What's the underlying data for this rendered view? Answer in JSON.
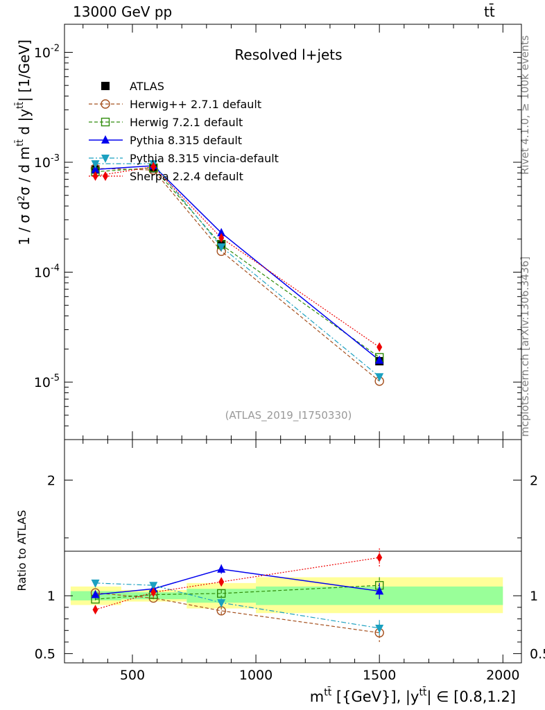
{
  "header": {
    "left": "13000 GeV pp",
    "right": "t t̄"
  },
  "side_labels": {
    "rivet": "Rivet 4.1.0, ≥ 100k events",
    "mcplots": "mcplots.cern.ch [arXiv:1306.3436]"
  },
  "colors": {
    "atlas": "#000000",
    "herwigpp": "#a5501e",
    "herwig7": "#2f8c0a",
    "pythia": "#0000ee",
    "vincia": "#1ba0c0",
    "sherpa": "#ee0000",
    "band_inner": "#99ff99",
    "band_outer": "#ffff99"
  },
  "chart_data": [
    {
      "type": "line",
      "title": "Resolved l+jets",
      "analysis_id": "(ATLAS_2019_I1750330)",
      "ylabel": "1 / σ d²σ / d m^tt̄ d |y^tt̄| [1/GeV]",
      "yscale": "log",
      "ylim": [
        3e-06,
        0.018
      ],
      "yticks": [
        {
          "value": 0.01,
          "label": "10^-2"
        },
        {
          "value": 0.001,
          "label": "10^-3"
        },
        {
          "value": 0.0001,
          "label": "10^-4"
        },
        {
          "value": 1e-05,
          "label": "10^-5"
        }
      ],
      "xlim": [
        225,
        2075
      ],
      "x": [
        350,
        585,
        860,
        1500
      ],
      "legend": [
        {
          "key": "atlas",
          "label": "ATLAS"
        },
        {
          "key": "herwigpp",
          "label": "Herwig++ 2.7.1 default"
        },
        {
          "key": "herwig7",
          "label": "Herwig 7.2.1 default"
        },
        {
          "key": "pythia",
          "label": "Pythia 8.315 default"
        },
        {
          "key": "vincia",
          "label": "Pythia 8.315 vincia-default"
        },
        {
          "key": "sherpa",
          "label": "Sherpa 2.2.4 default"
        }
      ],
      "series": [
        {
          "key": "atlas",
          "name": "ATLAS",
          "values": [
            0.00086,
            0.00088,
            0.00018,
            1.55e-05
          ]
        },
        {
          "key": "herwigpp",
          "name": "Herwig++ 2.7.1 default",
          "values": [
            0.00088,
            0.00085,
            0.000155,
            1.02e-05
          ]
        },
        {
          "key": "herwig7",
          "name": "Herwig 7.2.1 default",
          "values": [
            0.00082,
            0.00089,
            0.000178,
            1.68e-05
          ]
        },
        {
          "key": "pythia",
          "name": "Pythia 8.315 default",
          "values": [
            0.00086,
            0.00093,
            0.000228,
            1.58e-05
          ]
        },
        {
          "key": "vincia",
          "name": "Pythia 8.315 vincia-default",
          "values": [
            0.00097,
            0.00097,
            0.00017,
            1.12e-05
          ]
        },
        {
          "key": "sherpa",
          "name": "Sherpa 2.2.4 default",
          "values": [
            0.00075,
            0.00091,
            0.000205,
            2.08e-05
          ]
        }
      ]
    },
    {
      "type": "line",
      "ylabel": "Ratio to ATLAS",
      "xlabel": "m^tt̄ [{GeV}], |y^tt̄| ∈ [0.8,1.2]",
      "ylim": [
        0.42,
        2.35
      ],
      "yticks": [
        {
          "value": 0.5,
          "label": "0.5"
        },
        {
          "value": 1,
          "label": "1"
        },
        {
          "value": 2,
          "label": "2"
        }
      ],
      "xlim": [
        225,
        2075
      ],
      "xticks": [
        {
          "value": 500,
          "label": "500"
        },
        {
          "value": 1000,
          "label": "1000"
        },
        {
          "value": 1500,
          "label": "1500"
        },
        {
          "value": 2000,
          "label": "2000"
        }
      ],
      "x": [
        350,
        585,
        860,
        1500
      ],
      "bins": [
        {
          "lo": 250,
          "hi": 455,
          "inner": [
            0.96,
            1.04
          ],
          "outer": [
            0.92,
            1.08
          ]
        },
        {
          "lo": 455,
          "hi": 720,
          "inner": [
            0.97,
            1.03
          ],
          "outer": [
            0.95,
            1.05
          ]
        },
        {
          "lo": 720,
          "hi": 1000,
          "inner": [
            0.94,
            1.06
          ],
          "outer": [
            0.89,
            1.11
          ]
        },
        {
          "lo": 1000,
          "hi": 2000,
          "inner": [
            0.92,
            1.08
          ],
          "outer": [
            0.85,
            1.16
          ]
        }
      ],
      "series": [
        {
          "key": "herwigpp",
          "name": "Herwig++ 2.7.1 default",
          "values": [
            1.025,
            0.98,
            0.87,
            0.68
          ],
          "errors": [
            0.02,
            0.01,
            0.04,
            0.08
          ]
        },
        {
          "key": "herwig7",
          "name": "Herwig 7.2.1 default",
          "values": [
            0.97,
            1.01,
            1.02,
            1.09
          ],
          "errors": [
            0.02,
            0.01,
            0.03,
            0.07
          ]
        },
        {
          "key": "pythia",
          "name": "Pythia 8.315 default",
          "values": [
            1.01,
            1.06,
            1.23,
            1.04
          ],
          "errors": [
            0.02,
            0.01,
            0.04,
            0.07
          ]
        },
        {
          "key": "vincia",
          "name": "Pythia 8.315 vincia-default",
          "values": [
            1.11,
            1.09,
            0.94,
            0.72
          ],
          "errors": [
            0.02,
            0.01,
            0.04,
            0.07
          ]
        },
        {
          "key": "sherpa",
          "name": "Sherpa 2.2.4 default",
          "values": [
            0.88,
            1.03,
            1.12,
            1.33
          ],
          "errors": [
            0.02,
            0.01,
            0.03,
            0.08
          ]
        }
      ]
    }
  ]
}
